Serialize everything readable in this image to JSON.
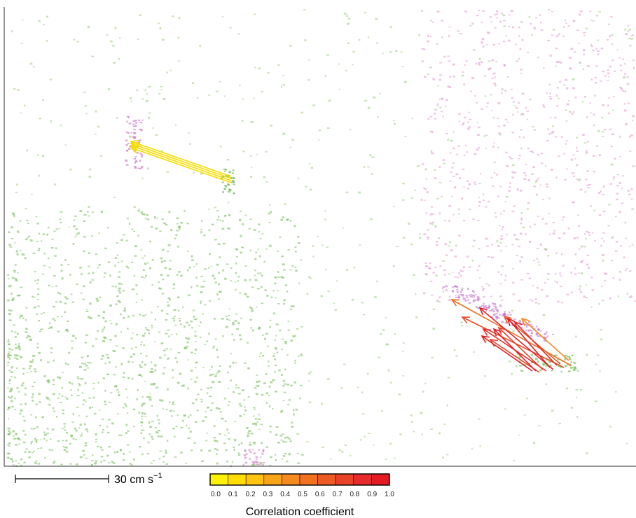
{
  "scale_bar": {
    "label": "30 cm s",
    "unit_exponent": "−1"
  },
  "colorbar": {
    "label": "Correlation coefficient",
    "colors": [
      "#fff200",
      "#ffdd00",
      "#fdc50f",
      "#f9a51a",
      "#f58a1f",
      "#f2711f",
      "#ee5a24",
      "#ea4227",
      "#e62b2a",
      "#e31b23"
    ],
    "ticks": [
      {
        "value": 0,
        "label": "0.0"
      },
      {
        "value": 0.1,
        "label": "0.1"
      },
      {
        "value": 0.2,
        "label": "0.2"
      },
      {
        "value": 0.3,
        "label": "0.3"
      },
      {
        "value": 0.4,
        "label": "0.4"
      },
      {
        "value": 0.5,
        "label": "0.5"
      },
      {
        "value": 0.6,
        "label": "0.6"
      },
      {
        "value": 0.7,
        "label": "0.7"
      },
      {
        "value": 0.8,
        "label": "0.8"
      },
      {
        "value": 0.9,
        "label": "0.9"
      },
      {
        "value": 1,
        "label": "1.0"
      }
    ]
  }
}
